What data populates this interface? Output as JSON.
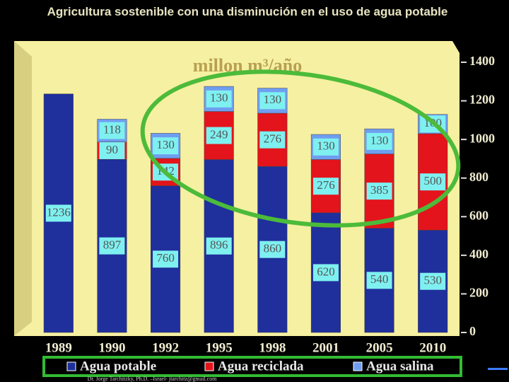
{
  "chart_data": {
    "type": "stacked_bar",
    "title": "Agricultura sostenible con una disminución en el uso de agua potable",
    "subtitle": "millon m³/año",
    "footer": "Dr. Jorge Tarchitzky, Ph.D. –Israel- jtarchitz@gmail.com",
    "categories": [
      "1989",
      "1990",
      "1992",
      "1995",
      "1998",
      "2001",
      "2005",
      "2010"
    ],
    "series": [
      {
        "name": "Agua potable",
        "color": "#1f2f9c",
        "values": [
          1236,
          897,
          760,
          896,
          860,
          620,
          540,
          530
        ]
      },
      {
        "name": "Agua reciclada",
        "color": "#e3141b",
        "values": [
          null,
          90,
          142,
          249,
          276,
          276,
          385,
          500
        ]
      },
      {
        "name": "Agua salina",
        "color": "#6f9ef0",
        "values": [
          null,
          118,
          130,
          130,
          130,
          130,
          130,
          100
        ]
      }
    ],
    "ylim": [
      0,
      1400
    ],
    "yticks": [
      0,
      200,
      400,
      600,
      800,
      1000,
      1200,
      1400
    ]
  }
}
